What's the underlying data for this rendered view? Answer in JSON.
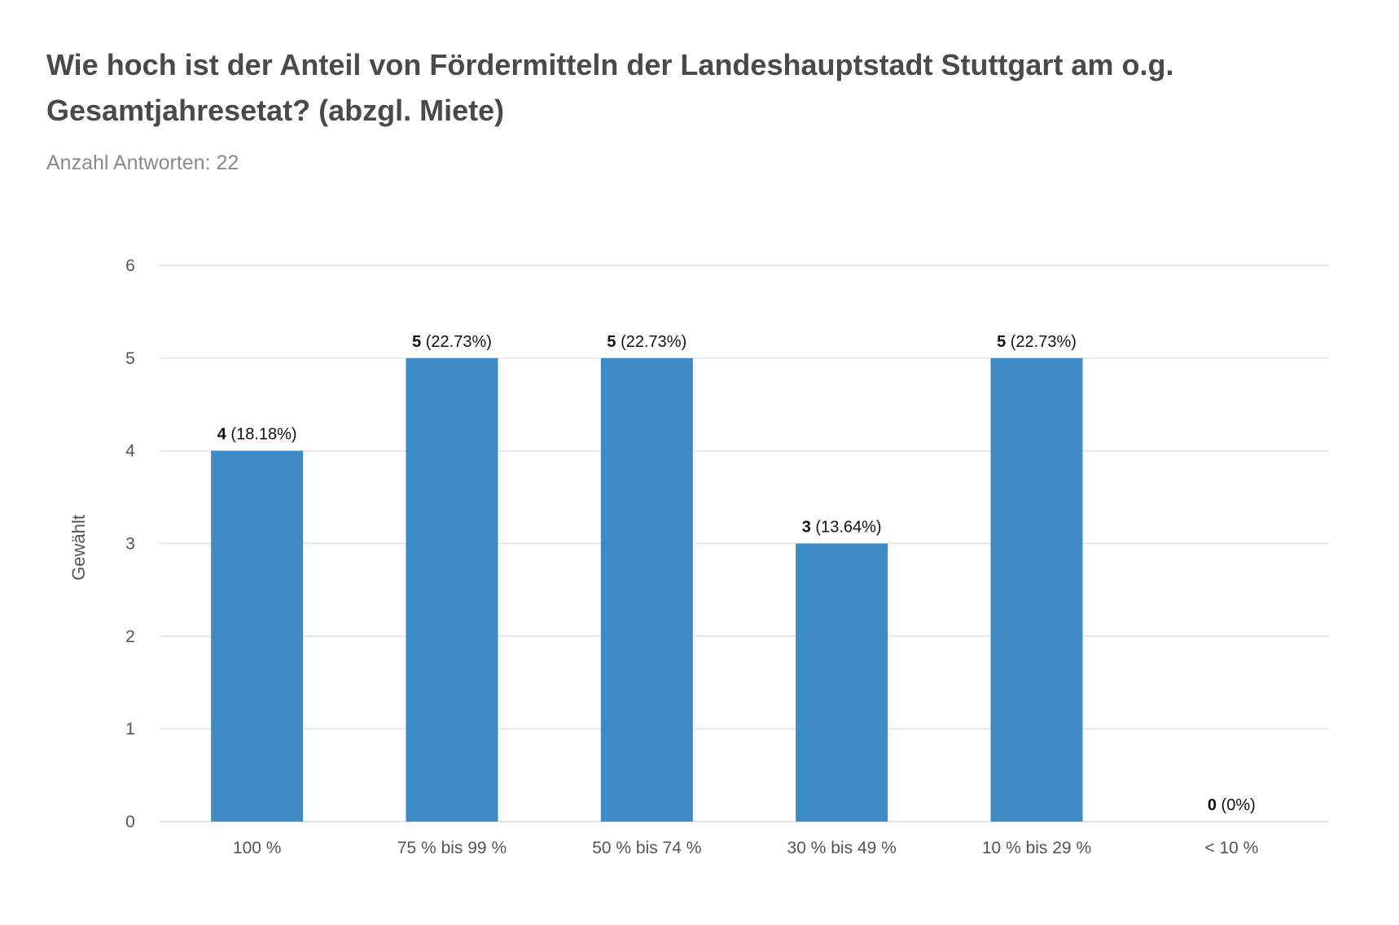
{
  "title": "Wie hoch ist der Anteil von Fördermitteln der Landeshauptstadt Stuttgart am o.g. Gesamtjahresetat? (abzgl. Miete)",
  "subtitle": "Anzahl Antworten: 22",
  "colors": {
    "bar": "#3c8bc4",
    "grid": "#e2e2e2",
    "title": "#4a4a4a",
    "subtitle": "#8a8a8a"
  },
  "chart_data": {
    "type": "bar",
    "title": "Wie hoch ist der Anteil von Fördermitteln der Landeshauptstadt Stuttgart am o.g. Gesamtjahresetat? (abzgl. Miete)",
    "subtitle": "Anzahl Antworten: 22",
    "xlabel": "",
    "ylabel": "Gewählt",
    "ylim": [
      0,
      6
    ],
    "yticks": [
      0,
      1,
      2,
      3,
      4,
      5,
      6
    ],
    "grid": true,
    "categories": [
      "100 %",
      "75 % bis 99 %",
      "50 % bis 74 %",
      "30 % bis 49 %",
      "10 % bis 29 %",
      "< 10 %"
    ],
    "values": [
      4,
      5,
      5,
      3,
      5,
      0
    ],
    "percent_labels": [
      "(18.18%)",
      "(22.73%)",
      "(22.73%)",
      "(13.64%)",
      "(22.73%)",
      "(0%)"
    ]
  }
}
